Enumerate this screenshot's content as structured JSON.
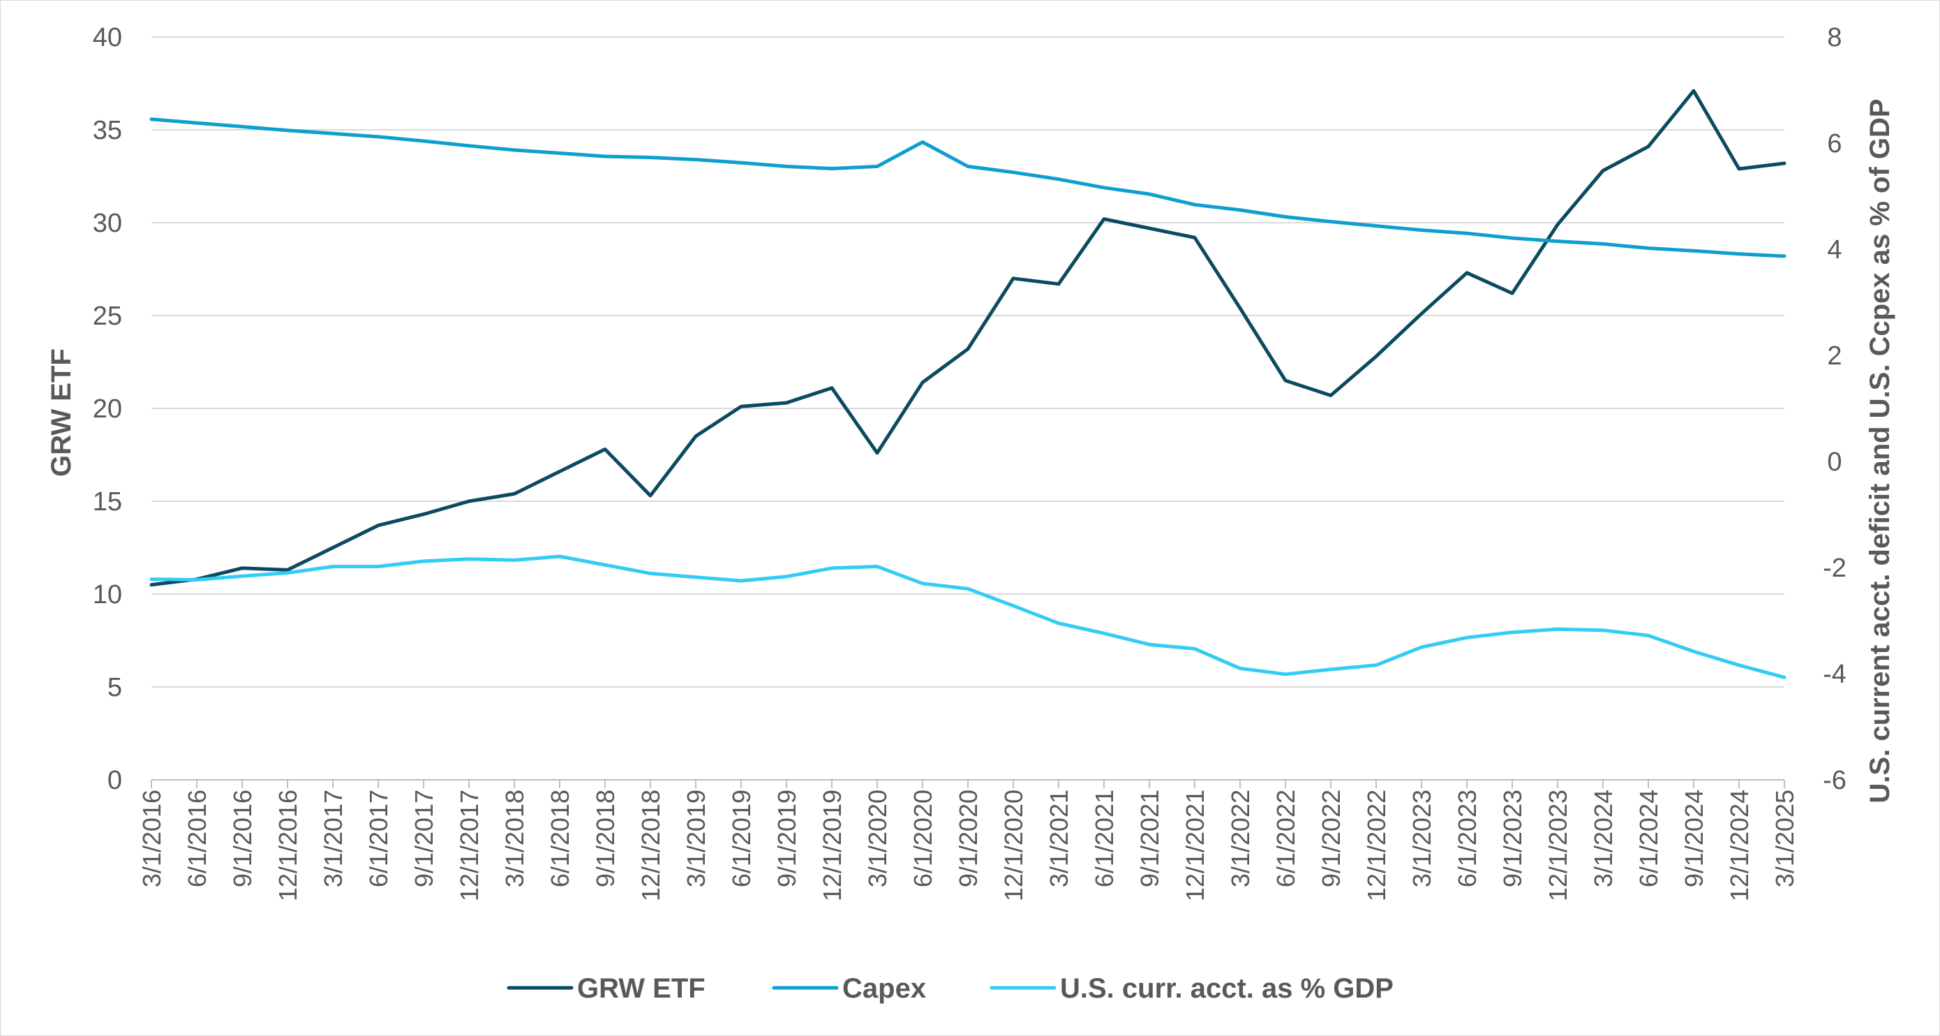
{
  "chart_data": {
    "type": "line",
    "title": "",
    "categories": [
      "3/1/2016",
      "6/1/2016",
      "9/1/2016",
      "12/1/2016",
      "3/1/2017",
      "6/1/2017",
      "9/1/2017",
      "12/1/2017",
      "3/1/2018",
      "6/1/2018",
      "9/1/2018",
      "12/1/2018",
      "3/1/2019",
      "6/1/2019",
      "9/1/2019",
      "12/1/2019",
      "3/1/2020",
      "6/1/2020",
      "9/1/2020",
      "12/1/2020",
      "3/1/2021",
      "6/1/2021",
      "9/1/2021",
      "12/1/2021",
      "3/1/2022",
      "6/1/2022",
      "9/1/2022",
      "12/1/2022",
      "3/1/2023",
      "6/1/2023",
      "9/1/2023",
      "12/1/2023",
      "3/1/2024",
      "6/1/2024",
      "9/1/2024",
      "12/1/2024",
      "3/1/2025"
    ],
    "ylabel": "GRW ETF",
    "y2label": "U.S. current acct. deficit and U.S. Ccpex as % of GDP",
    "ylim": [
      0,
      40
    ],
    "y2lim": [
      -6,
      8
    ],
    "yticks": [
      "0",
      "5",
      "10",
      "15",
      "20",
      "25",
      "30",
      "35",
      "40"
    ],
    "y2ticks": [
      "-6",
      "-4",
      "-2",
      "0",
      "2",
      "4",
      "6",
      "8"
    ],
    "grid": true,
    "legend_position": "bottom",
    "series": [
      {
        "name": "GRW ETF",
        "axis": "left",
        "color": "#0b4a61",
        "values": [
          10.5,
          10.8,
          11.4,
          11.3,
          12.5,
          13.7,
          14.3,
          15.0,
          15.4,
          16.6,
          17.8,
          15.3,
          18.5,
          20.1,
          20.3,
          21.1,
          17.6,
          21.4,
          23.2,
          27.0,
          26.7,
          30.2,
          29.7,
          29.2,
          25.4,
          21.5,
          20.7,
          22.8,
          25.1,
          27.3,
          26.2,
          29.9,
          32.8,
          34.1,
          37.1,
          32.9,
          33.2
        ]
      },
      {
        "name": "Capex",
        "axis": "right",
        "color": "#0f9ed0",
        "values": [
          6.45,
          6.38,
          6.31,
          6.24,
          6.18,
          6.12,
          6.04,
          5.95,
          5.87,
          5.81,
          5.75,
          5.73,
          5.69,
          5.63,
          5.56,
          5.52,
          5.56,
          6.02,
          5.56,
          5.45,
          5.32,
          5.16,
          5.04,
          4.84,
          4.74,
          4.61,
          4.52,
          4.44,
          4.36,
          4.3,
          4.21,
          4.15,
          4.1,
          4.02,
          3.97,
          3.91,
          3.87
        ]
      },
      {
        "name": "U.S. curr. acct. as % GDP",
        "axis": "right",
        "color": "#33ccf5",
        "values": [
          -2.22,
          -2.23,
          -2.16,
          -2.1,
          -1.98,
          -1.98,
          -1.88,
          -1.84,
          -1.86,
          -1.79,
          -1.95,
          -2.11,
          -2.18,
          -2.25,
          -2.17,
          -2.01,
          -1.98,
          -2.3,
          -2.4,
          -2.72,
          -3.05,
          -3.24,
          -3.45,
          -3.53,
          -3.9,
          -4.01,
          -3.92,
          -3.84,
          -3.5,
          -3.32,
          -3.22,
          -3.16,
          -3.18,
          -3.28,
          -3.58,
          -3.84,
          -4.07
        ]
      }
    ]
  }
}
